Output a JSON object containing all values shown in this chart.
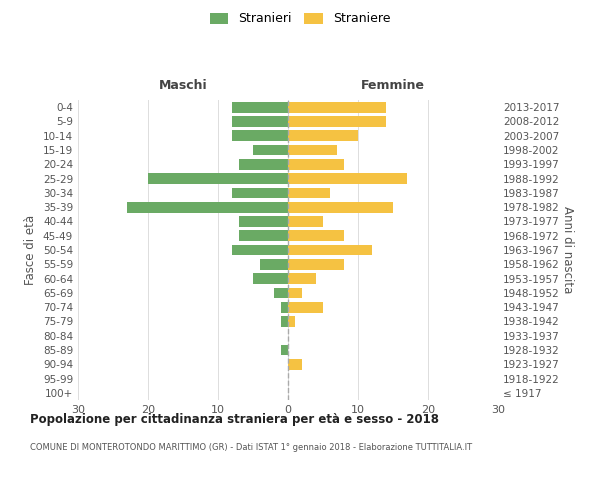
{
  "age_groups": [
    "100+",
    "95-99",
    "90-94",
    "85-89",
    "80-84",
    "75-79",
    "70-74",
    "65-69",
    "60-64",
    "55-59",
    "50-54",
    "45-49",
    "40-44",
    "35-39",
    "30-34",
    "25-29",
    "20-24",
    "15-19",
    "10-14",
    "5-9",
    "0-4"
  ],
  "birth_years": [
    "≤ 1917",
    "1918-1922",
    "1923-1927",
    "1928-1932",
    "1933-1937",
    "1938-1942",
    "1943-1947",
    "1948-1952",
    "1953-1957",
    "1958-1962",
    "1963-1967",
    "1968-1972",
    "1973-1977",
    "1978-1982",
    "1983-1987",
    "1988-1992",
    "1993-1997",
    "1998-2002",
    "2003-2007",
    "2008-2012",
    "2013-2017"
  ],
  "males": [
    0,
    0,
    0,
    1,
    0,
    1,
    1,
    2,
    5,
    4,
    8,
    7,
    7,
    23,
    8,
    20,
    7,
    5,
    8,
    8,
    8
  ],
  "females": [
    0,
    0,
    2,
    0,
    0,
    1,
    5,
    2,
    4,
    8,
    12,
    8,
    5,
    15,
    6,
    17,
    8,
    7,
    10,
    14,
    14
  ],
  "male_color": "#6aaa64",
  "female_color": "#f5c242",
  "center_line_color": "#aaaaaa",
  "grid_color": "#dddddd",
  "title": "Popolazione per cittadinanza straniera per età e sesso - 2018",
  "subtitle": "COMUNE DI MONTEROTONDO MARITTIMO (GR) - Dati ISTAT 1° gennaio 2018 - Elaborazione TUTTITALIA.IT",
  "ylabel_left": "Fasce di età",
  "ylabel_right": "Anni di nascita",
  "header_left": "Maschi",
  "header_right": "Femmine",
  "legend_male": "Stranieri",
  "legend_female": "Straniere",
  "xlim": 30,
  "background_color": "#ffffff"
}
